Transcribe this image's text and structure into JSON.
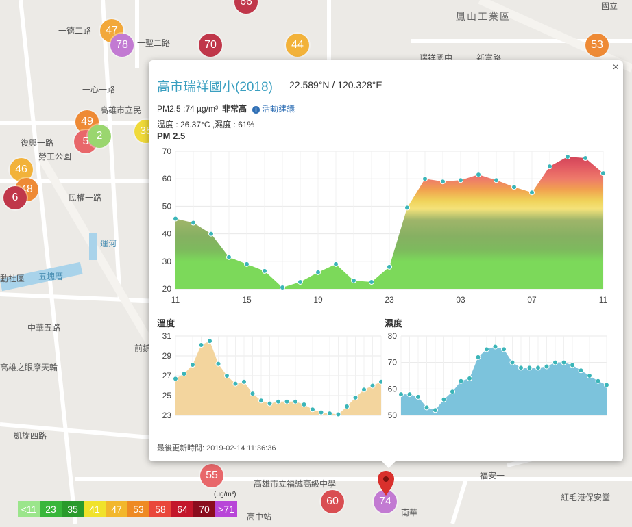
{
  "map": {
    "labels": [
      {
        "id": "fengshan-industrial",
        "text": "鳳山工業區"
      },
      {
        "id": "national",
        "text": "國立"
      },
      {
        "id": "yide-2rd",
        "text": "一德二路"
      },
      {
        "id": "yisheng-2rd",
        "text": "一聖二路"
      },
      {
        "id": "yixin-rd",
        "text": "一心一路"
      },
      {
        "id": "xinfu-rd",
        "text": "新富路"
      },
      {
        "id": "ruixiang-jr",
        "text": "瑞祥國中"
      },
      {
        "id": "kaohsiung-li",
        "text": "高雄市立民"
      },
      {
        "id": "fuguo-rd",
        "text": "復興一路"
      },
      {
        "id": "laogong-park",
        "text": "勞工公園"
      },
      {
        "id": "minzheng-rd",
        "text": "民權一路"
      },
      {
        "id": "canal",
        "text": "運河"
      },
      {
        "id": "wukuai",
        "text": "五塊厝"
      },
      {
        "id": "community",
        "text": "動社區"
      },
      {
        "id": "zhonghua-5",
        "text": "中華五路"
      },
      {
        "id": "eye-wheel",
        "text": "高雄之眼摩天輪"
      },
      {
        "id": "kaixuan-4",
        "text": "凱旋四路"
      },
      {
        "id": "qianzhen",
        "text": "前鎮"
      },
      {
        "id": "fuan",
        "text": "福安一"
      },
      {
        "id": "fuceng-hs",
        "text": "高雄市立福誠高級中學"
      },
      {
        "id": "redhair-harbor",
        "text": "紅毛港保安堂"
      },
      {
        "id": "gaozhong-station",
        "text": "高中站"
      },
      {
        "id": "nanhua",
        "text": "南華"
      }
    ],
    "markers": [
      {
        "id": "m66",
        "value": "66",
        "color": "#c0374a"
      },
      {
        "id": "m47",
        "value": "47",
        "color": "#f2a83a"
      },
      {
        "id": "m78",
        "value": "78",
        "color": "#c27ad2"
      },
      {
        "id": "m70",
        "value": "70",
        "color": "#c0374a"
      },
      {
        "id": "m44",
        "value": "44",
        "color": "#f2b23a"
      },
      {
        "id": "m53",
        "value": "53",
        "color": "#ee8a35"
      },
      {
        "id": "m49",
        "value": "49",
        "color": "#ee8a35"
      },
      {
        "id": "m5",
        "value": "5",
        "color": "#e8676a"
      },
      {
        "id": "m2",
        "value": "2",
        "color": "#9ad66f"
      },
      {
        "id": "m35",
        "value": "35",
        "color": "#f0da3a"
      },
      {
        "id": "m46",
        "value": "46",
        "color": "#f2b23a"
      },
      {
        "id": "m48",
        "value": "48",
        "color": "#ee8a35"
      },
      {
        "id": "m6x",
        "value": "6",
        "color": "#c0374a"
      },
      {
        "id": "m55",
        "value": "55",
        "color": "#e8676a"
      },
      {
        "id": "m60",
        "value": "60",
        "color": "#d94e52"
      },
      {
        "id": "m74",
        "value": "74",
        "color": "#c27ad2"
      }
    ]
  },
  "popup": {
    "close_label": "×",
    "station": "高市瑞祥國小(2018)",
    "coords": "22.589°N / 120.328°E",
    "pm_label": "PM2.5 :74 µg/m³",
    "pm_level": "非常高",
    "info_icon": "info-icon",
    "advice_link": "活動建議",
    "weather": "溫度 : 26.37°C ,濕度 : 61%",
    "pm_title": "PM 2.5",
    "temp_title": "溫度",
    "humidity_title": "濕度",
    "updated": "最後更新時間: 2019-02-14 11:36:36"
  },
  "legend": {
    "unit": "(µg/m³)",
    "items": [
      {
        "label": "<11",
        "color": "#9be58b"
      },
      {
        "label": "23",
        "color": "#38b63a"
      },
      {
        "label": "35",
        "color": "#2a9a2c"
      },
      {
        "label": "41",
        "color": "#f0e22b"
      },
      {
        "label": "47",
        "color": "#f2b72c"
      },
      {
        "label": "53",
        "color": "#ee8a24"
      },
      {
        "label": "58",
        "color": "#e9473b"
      },
      {
        "label": "64",
        "color": "#c3162b"
      },
      {
        "label": "70",
        "color": "#8a0d1e"
      },
      {
        "label": ">71",
        "color": "#b846d8"
      }
    ]
  },
  "chart_data": [
    {
      "type": "area",
      "name": "pm25",
      "title": "PM 2.5",
      "x": [
        0,
        1,
        2,
        3,
        4,
        5,
        6,
        7,
        8,
        9,
        10,
        11,
        12,
        13,
        14,
        15,
        16,
        17,
        18,
        19,
        20,
        21,
        22,
        23,
        24
      ],
      "xticks": [
        {
          "x": 0,
          "label": "11"
        },
        {
          "x": 4,
          "label": "15"
        },
        {
          "x": 8,
          "label": "19"
        },
        {
          "x": 12,
          "label": "23"
        },
        {
          "x": 16,
          "label": "03"
        },
        {
          "x": 20,
          "label": "07"
        },
        {
          "x": 24,
          "label": "11"
        }
      ],
      "values": [
        45.5,
        44,
        40,
        31.5,
        29,
        26.5,
        20.5,
        22.5,
        26,
        29,
        23,
        22.5,
        28,
        49.5,
        60,
        59,
        59.5,
        61.5,
        59.5,
        57,
        55,
        64.5,
        68,
        67.5,
        62
      ],
      "ylim": [
        20,
        70
      ],
      "yticks": [
        20,
        30,
        40,
        50,
        60,
        70
      ],
      "grid": true
    },
    {
      "type": "area",
      "name": "temperature",
      "title": "溫度",
      "x": [
        0,
        1,
        2,
        3,
        4,
        5,
        6,
        7,
        8,
        9,
        10,
        11,
        12,
        13,
        14,
        15,
        16,
        17,
        18,
        19,
        20,
        21,
        22,
        23,
        24
      ],
      "values": [
        26.7,
        27.2,
        28.1,
        30.1,
        30.5,
        28.2,
        27,
        26.2,
        26.4,
        25.2,
        24.5,
        24.2,
        24.4,
        24.4,
        24.4,
        24.1,
        23.6,
        23.3,
        23.2,
        23.1,
        23.9,
        24.8,
        25.6,
        26,
        26.4
      ],
      "ylim": [
        23,
        31
      ],
      "yticks": [
        23,
        25,
        27,
        29,
        31
      ],
      "grid": true
    },
    {
      "type": "area",
      "name": "humidity",
      "title": "濕度",
      "x": [
        0,
        1,
        2,
        3,
        4,
        5,
        6,
        7,
        8,
        9,
        10,
        11,
        12,
        13,
        14,
        15,
        16,
        17,
        18,
        19,
        20,
        21,
        22,
        23,
        24
      ],
      "values": [
        58,
        58,
        57,
        53,
        52,
        56,
        59,
        63,
        64,
        72,
        75,
        76,
        75,
        70,
        68,
        68,
        68,
        68.5,
        70,
        70,
        69,
        67,
        65,
        63,
        61.5
      ],
      "ylim": [
        50,
        80
      ],
      "yticks": [
        50,
        60,
        70,
        80
      ],
      "grid": true
    }
  ]
}
